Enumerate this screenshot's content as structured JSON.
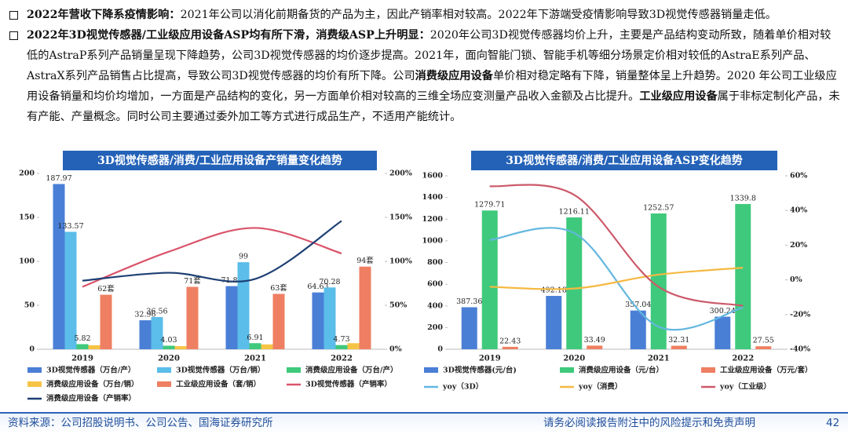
{
  "bullets": [
    {
      "segments": [
        {
          "text": "2022年营收下降系疫情影响：",
          "bold": true
        },
        {
          "text": "2021年公司以消化前期备货的产品为主，因此产销率相对较高。2022年下游端受疫情影响导致3D视觉传感器销量走低。",
          "bold": false
        }
      ]
    },
    {
      "segments": [
        {
          "text": "2022年3D视觉传感器/工业级应用设备ASP均有所下滑，消费级ASP上升明显：",
          "bold": true
        },
        {
          "text": "2020年公司3D视觉传感器均价上升，主要是产品结构变动所致，随着单价相对较低的AstraP系列产品销量呈现下降趋势，公司3D视觉传感器的均价逐步提高。2021年，面向智能门锁、智能手机等细分场景定价相对较低的AstraE系列产品、AstraX系列产品销售占比提高，导致公司3D视觉传感器的均价有所下降。公司",
          "bold": false
        },
        {
          "text": "消费级应用设备",
          "bold": true
        },
        {
          "text": "单价相对稳定略有下降，销量整体呈上升趋势。2020 年公司工业级应用设备销量和均价均增加，一方面是产品结构的变化，另一方面单价相对较高的三维全场应变测量产品收入金额及占比提升。",
          "bold": false
        },
        {
          "text": "工业级应用设备",
          "bold": true
        },
        {
          "text": "属于非标定制化产品，未有产能、产量概念。同时公司主要通过委外加工等方式进行成品生产，不适用产能统计。",
          "bold": false
        }
      ]
    }
  ],
  "chart_data": [
    {
      "type": "bar",
      "title": "3D视觉传感器/消费/工业应用设备产销量变化趋势",
      "categories": [
        "2019",
        "2020",
        "2021",
        "2022"
      ],
      "ylim": [
        0,
        200
      ],
      "yticks": [
        0,
        50,
        100,
        150,
        200
      ],
      "y2lim": [
        0,
        200
      ],
      "y2ticks": [
        {
          "value": 0,
          "label": "0%"
        },
        {
          "value": 50,
          "label": "50%"
        },
        {
          "value": 100,
          "label": "100%"
        },
        {
          "value": 150,
          "label": "150%"
        },
        {
          "value": 200,
          "label": "200%"
        }
      ],
      "series": [
        {
          "name": "3D视觉传感器（万台/产）",
          "type": "bar",
          "color": "#4a7fd6",
          "labels": true,
          "values": [
            187.97,
            32.96,
            71.82,
            64.63
          ]
        },
        {
          "name": "3D视觉传感器（万台/销）",
          "type": "bar",
          "color": "#5bbde9",
          "labels": true,
          "values": [
            133.57,
            36.56,
            99,
            70.28
          ]
        },
        {
          "name": "消费级应用设备（万台/产）",
          "type": "bar",
          "color": "#3fc97c",
          "labels": true,
          "values": [
            5.82,
            4.03,
            6.91,
            4.73
          ]
        },
        {
          "name": "消费级应用设备（万台/销）",
          "type": "bar",
          "color": "#f6c445",
          "labels": false,
          "values": [
            4.54,
            3.5,
            5.5,
            6.9
          ]
        },
        {
          "name": "工业级应用设备（套/销）",
          "type": "bar",
          "color": "#ef7f62",
          "labels": true,
          "values": [
            62,
            71,
            63,
            94
          ],
          "value_labels": [
            "62套",
            "71套",
            "63套",
            "94套"
          ]
        },
        {
          "name": "3D视觉传感器（产销率）",
          "type": "line",
          "axis": "y2",
          "color": "#d9546a",
          "labels": false,
          "values": [
            71,
            111,
            138,
            109
          ]
        },
        {
          "name": "消费级应用设备（产销率）",
          "type": "line",
          "axis": "y2",
          "color": "#1d3f73",
          "labels": false,
          "values": [
            78,
            87,
            80,
            146
          ]
        }
      ]
    },
    {
      "type": "bar",
      "title": "3D视觉传感器/消费/工业应用设备ASP变化趋势",
      "categories": [
        "2019",
        "2020",
        "2021",
        "2022"
      ],
      "ylim": [
        0,
        1600
      ],
      "yticks": [
        0,
        200,
        400,
        600,
        800,
        1000,
        1200,
        1400,
        1600
      ],
      "y2lim": [
        -40,
        60
      ],
      "y2ticks": [
        {
          "value": -40,
          "label": "-40%"
        },
        {
          "value": -20,
          "label": "-20%"
        },
        {
          "value": 0,
          "label": "0%"
        },
        {
          "value": 20,
          "label": "20%"
        },
        {
          "value": 40,
          "label": "40%"
        },
        {
          "value": 60,
          "label": "60%"
        }
      ],
      "series": [
        {
          "name": "3D视觉传感器(元/台)",
          "type": "bar",
          "color": "#4a7fd6",
          "labels": true,
          "values": [
            387.36,
            492.18,
            357.04,
            300.24
          ]
        },
        {
          "name": "消费级应用设备（元/台）",
          "type": "bar",
          "color": "#3fc97c",
          "labels": true,
          "values": [
            1279.71,
            1216.11,
            1252.57,
            1339.8
          ]
        },
        {
          "name": "工业级应用设备（万元/套）",
          "type": "bar",
          "color": "#ef7f62",
          "labels": true,
          "values": [
            22.43,
            33.49,
            32.31,
            27.55
          ]
        },
        {
          "name": "yoy（3D）",
          "type": "line",
          "axis": "y2",
          "color": "#63b7e0",
          "labels": false,
          "values": [
            23,
            27,
            -27,
            -16
          ]
        },
        {
          "name": "yoy（消费）",
          "type": "line",
          "axis": "y2",
          "color": "#f5b942",
          "labels": false,
          "values": [
            -4,
            -5,
            3,
            7
          ]
        },
        {
          "name": "yoy（工业级）",
          "type": "line",
          "axis": "y2",
          "color": "#cc5a6a",
          "labels": false,
          "values": [
            54,
            49,
            -4,
            -15
          ]
        }
      ]
    }
  ],
  "footer": {
    "source": "资料来源：公司招股说明书、公司公告、国海证券研究所",
    "disclaimer": "请务必阅读报告附注中的风险提示和免责声明",
    "page": "42"
  }
}
